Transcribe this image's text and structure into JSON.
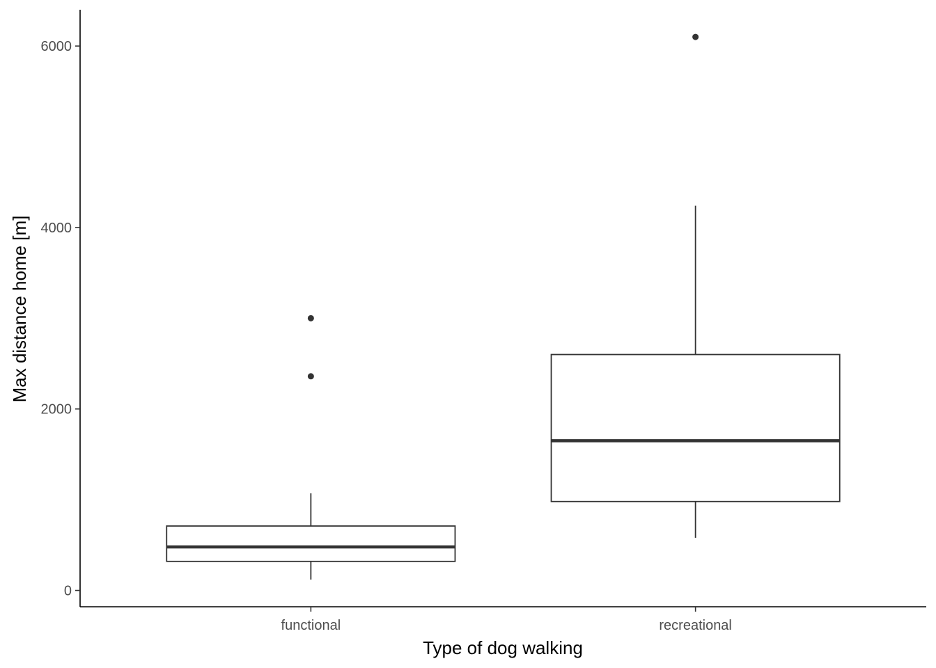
{
  "chart_data": {
    "type": "box",
    "title": "",
    "xlabel": "Type of dog walking",
    "ylabel": "Max distance home [m]",
    "categories": [
      "functional",
      "recreational"
    ],
    "ylim": [
      -180,
      6400
    ],
    "yticks": [
      0,
      2000,
      4000,
      6000
    ],
    "ytick_labels": [
      "0",
      "2000",
      "4000",
      "6000"
    ],
    "grid": false,
    "boxes": [
      {
        "category": "functional",
        "whisker_low": 120,
        "q1": 320,
        "median": 480,
        "q3": 710,
        "whisker_high": 1070,
        "outliers": [
          2360,
          3000
        ]
      },
      {
        "category": "recreational",
        "whisker_low": 580,
        "q1": 980,
        "median": 1650,
        "q3": 2600,
        "whisker_high": 4240,
        "outliers": [
          6100
        ]
      }
    ],
    "colors": {
      "box_stroke": "#333333",
      "box_fill": "#ffffff",
      "axis": "#000000",
      "tick_text": "#4d4d4d"
    }
  }
}
